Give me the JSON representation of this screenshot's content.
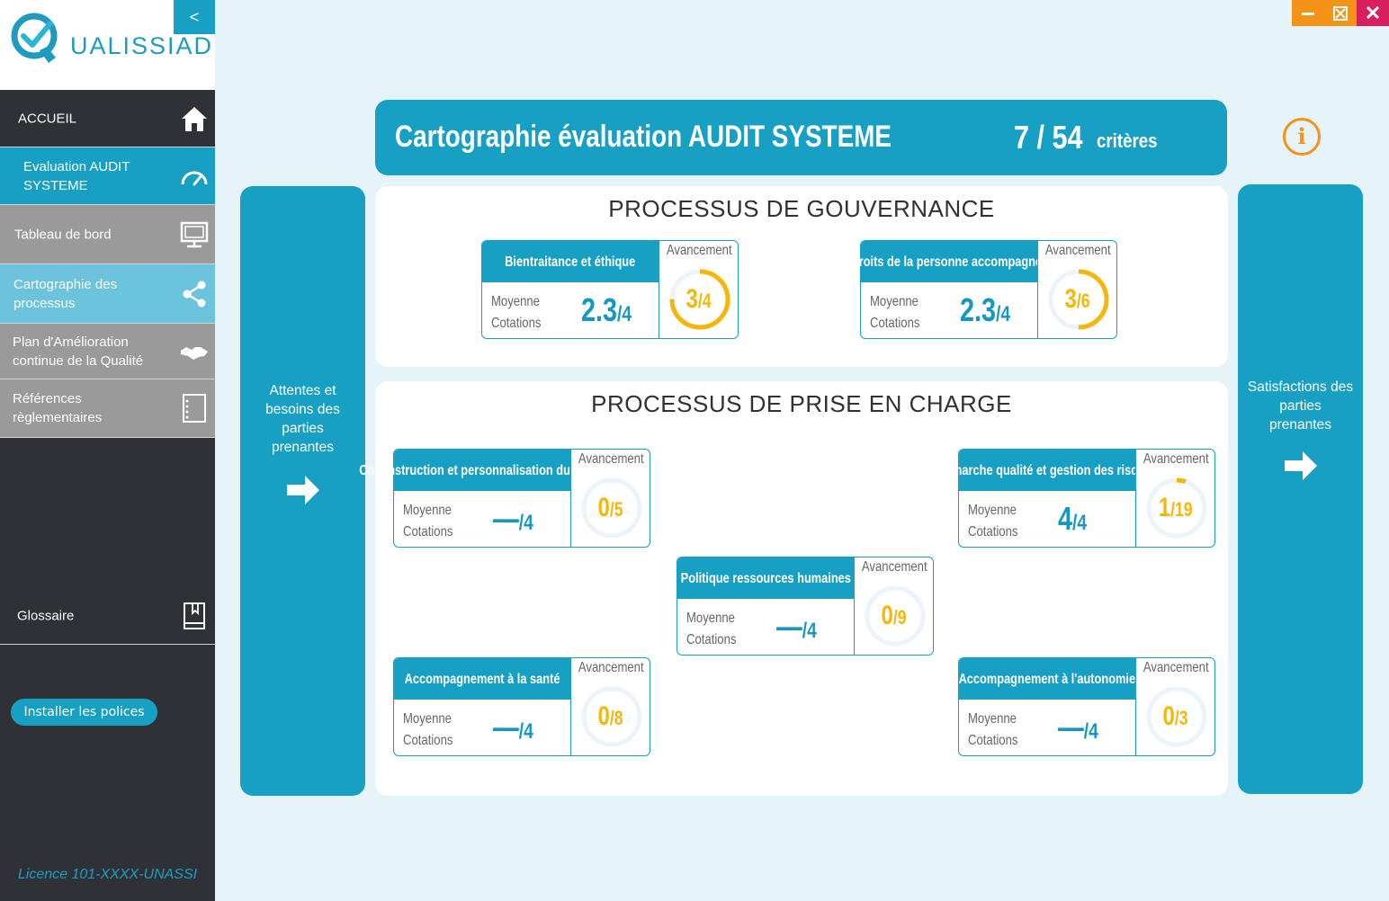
{
  "app": {
    "logo_text": "UALISSIAD",
    "collapse_label": "<"
  },
  "window_controls": {
    "minimize": "—",
    "maximize": "⤢",
    "close": "✕"
  },
  "sidebar": {
    "items": [
      {
        "label": "ACCUEIL",
        "icon": "home-icon"
      },
      {
        "label": "Evaluation AUDIT SYSTEME",
        "icon": "speedometer-icon"
      },
      {
        "label": "Tableau de bord",
        "icon": "monitor-icon"
      },
      {
        "label": "Cartographie des processus",
        "icon": "share-icon"
      },
      {
        "label": "Plan d'Amélioration continue de la Qualité",
        "icon": "handshake-icon"
      },
      {
        "label": "Références règlementaires",
        "icon": "notebook-icon"
      },
      {
        "label": "Glossaire",
        "icon": "book-icon"
      }
    ],
    "install_button": "Installer les polices",
    "licence": "Licence 101-XXXX-UNASSI"
  },
  "header": {
    "title": "Cartographie évaluation AUDIT SYSTEME",
    "count": "7 / 54",
    "count_unit": "critères"
  },
  "panels": {
    "left": "Attentes et besoins des parties prenantes",
    "right": "Satisfactions des parties prenantes"
  },
  "sections": {
    "gouvernance_title": "PROCESSUS DE GOUVERNANCE",
    "prise_title": "PROCESSUS DE PRISE EN CHARGE"
  },
  "labels": {
    "avancement": "Avancement",
    "moyenne": "Moyenne",
    "cotations": "Cotations",
    "score_den": "/4"
  },
  "cards": {
    "bientraitance": {
      "name": "Bientraitance et éthique",
      "score": "2.3",
      "progress_num": "3",
      "progress_den": "/4",
      "progress": 0.75
    },
    "droits": {
      "name": "Droits de la personne accompagnée",
      "score": "2.3",
      "progress_num": "3",
      "progress_den": "/6",
      "progress": 0.5
    },
    "coconstruction": {
      "name": "Coconstruction et personnalisation du projet",
      "score": "—",
      "progress_num": "0",
      "progress_den": "/5",
      "progress": 0
    },
    "demarche": {
      "name": "Démarche qualité et gestion des risques",
      "score": "4",
      "progress_num": "1",
      "progress_den": "/19",
      "progress": 0.0526
    },
    "politique": {
      "name": "Politique ressources humaines",
      "score": "—",
      "progress_num": "0",
      "progress_den": "/9",
      "progress": 0
    },
    "sante": {
      "name": "Accompagnement à la santé",
      "score": "—",
      "progress_num": "0",
      "progress_den": "/8",
      "progress": 0
    },
    "autonomie": {
      "name": "Accompagnement à l'autonomie",
      "score": "—",
      "progress_num": "0",
      "progress_den": "/3",
      "progress": 0
    }
  },
  "colors": {
    "accent": "#17a0c4",
    "progress": "#f5b60a",
    "sidebar": "#2f3136",
    "background": "#e6f3f9"
  }
}
